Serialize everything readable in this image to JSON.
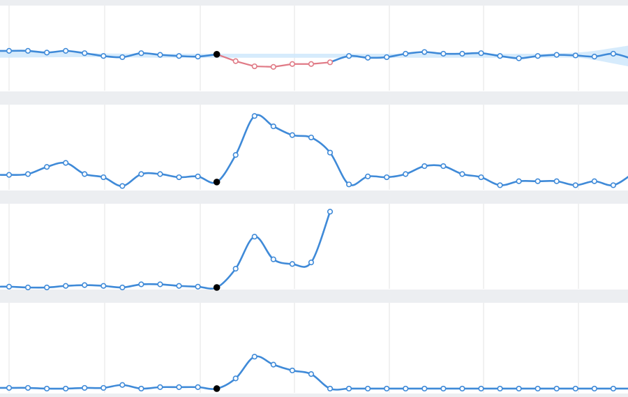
{
  "colors": {
    "line": "#3f8ad8",
    "highlight": "#e07a86",
    "band": "#cfe8fb",
    "marker_fill": "#ffffff",
    "event_marker": "#000000",
    "grid": "#e3e3e3",
    "separator": "#eceef1",
    "background": "#ffffff"
  },
  "chart_data": [
    {
      "type": "line",
      "xlim": [
        0,
        33
      ],
      "ylim": [
        0,
        1
      ],
      "grid": true,
      "x": [
        0,
        1,
        2,
        3,
        4,
        5,
        6,
        7,
        8,
        9,
        10,
        11,
        12,
        13,
        14,
        15,
        16,
        17,
        18,
        19,
        20,
        21,
        22,
        23,
        24,
        25,
        26,
        27,
        28,
        29,
        30,
        31,
        32,
        33
      ],
      "series": [
        {
          "role": "observed",
          "x": [
            0,
            1,
            2,
            3,
            4,
            5,
            6,
            7,
            8,
            9,
            10,
            11,
            12,
            13,
            14,
            15,
            16,
            17,
            18,
            19,
            20,
            21,
            22,
            23,
            24,
            25,
            26,
            27,
            28,
            29,
            30,
            31,
            32,
            33
          ],
          "values": [
            0.55,
            0.55,
            0.52,
            0.55,
            0.51,
            0.46,
            0.44,
            0.51,
            0.48,
            0.46,
            0.45,
            0.49,
            0.37,
            0.28,
            0.27,
            0.32,
            0.32,
            0.35,
            0.46,
            0.43,
            0.44,
            0.5,
            0.53,
            0.5,
            0.5,
            0.51,
            0.46,
            0.42,
            0.46,
            0.48,
            0.47,
            0.45,
            0.5,
            0.41
          ]
        },
        {
          "role": "anomaly",
          "x": [
            11,
            12,
            13,
            14,
            15,
            16,
            17
          ],
          "values": [
            0.49,
            0.37,
            0.28,
            0.27,
            0.32,
            0.32,
            0.35
          ]
        }
      ],
      "band": {
        "x": [
          0,
          4,
          8,
          12,
          16,
          20,
          24,
          28,
          30,
          31,
          32,
          33
        ],
        "upper": [
          0.55,
          0.51,
          0.5,
          0.5,
          0.5,
          0.5,
          0.5,
          0.5,
          0.52,
          0.55,
          0.6,
          0.64
        ],
        "lower": [
          0.43,
          0.44,
          0.43,
          0.43,
          0.43,
          0.43,
          0.43,
          0.43,
          0.43,
          0.39,
          0.33,
          0.28
        ]
      },
      "event_x": 11
    },
    {
      "type": "line",
      "xlim": [
        0,
        33
      ],
      "ylim": [
        0,
        1
      ],
      "grid": true,
      "series": [
        {
          "role": "observed",
          "x": [
            0,
            1,
            2,
            3,
            4,
            5,
            6,
            7,
            8,
            9,
            10,
            11,
            12,
            13,
            14,
            15,
            16,
            17,
            18,
            19,
            20,
            21,
            22,
            23,
            24,
            25,
            26,
            27,
            28,
            29,
            30,
            31,
            32,
            33
          ],
          "values": [
            0.17,
            0.18,
            0.27,
            0.32,
            0.18,
            0.14,
            0.03,
            0.18,
            0.18,
            0.14,
            0.15,
            0.08,
            0.42,
            0.91,
            0.78,
            0.67,
            0.64,
            0.45,
            0.05,
            0.15,
            0.14,
            0.18,
            0.28,
            0.28,
            0.18,
            0.14,
            0.04,
            0.09,
            0.09,
            0.09,
            0.04,
            0.09,
            0.04,
            0.18
          ]
        }
      ],
      "event_x": 11
    },
    {
      "type": "line",
      "xlim": [
        0,
        33
      ],
      "ylim": [
        0,
        1
      ],
      "grid": true,
      "series": [
        {
          "role": "observed",
          "x": [
            0,
            1,
            2,
            3,
            4,
            5,
            6,
            7,
            8,
            9,
            10,
            11,
            12,
            13,
            14,
            15,
            16,
            17
          ],
          "values": [
            0.01,
            0.0,
            0.0,
            0.02,
            0.03,
            0.02,
            0.0,
            0.04,
            0.04,
            0.02,
            0.01,
            0.0,
            0.24,
            0.65,
            0.36,
            0.3,
            0.32,
            0.97
          ]
        }
      ],
      "event_x": 11
    },
    {
      "type": "line",
      "xlim": [
        0,
        33
      ],
      "ylim": [
        0,
        1
      ],
      "grid": true,
      "series": [
        {
          "role": "observed",
          "x": [
            0,
            1,
            2,
            3,
            4,
            5,
            6,
            7,
            8,
            9,
            10,
            11,
            12,
            13,
            14,
            15,
            16,
            17,
            18,
            19,
            20,
            21,
            22,
            23,
            24,
            25,
            26,
            27,
            28,
            29,
            30,
            31,
            32,
            33
          ],
          "values": [
            0.02,
            0.02,
            0.01,
            0.01,
            0.02,
            0.02,
            0.06,
            0.01,
            0.03,
            0.03,
            0.03,
            0.01,
            0.15,
            0.45,
            0.34,
            0.26,
            0.21,
            0.01,
            0.01,
            0.01,
            0.01,
            0.01,
            0.01,
            0.01,
            0.01,
            0.01,
            0.01,
            0.01,
            0.01,
            0.01,
            0.01,
            0.01,
            0.01,
            0.01
          ]
        }
      ],
      "event_x": 11
    }
  ]
}
